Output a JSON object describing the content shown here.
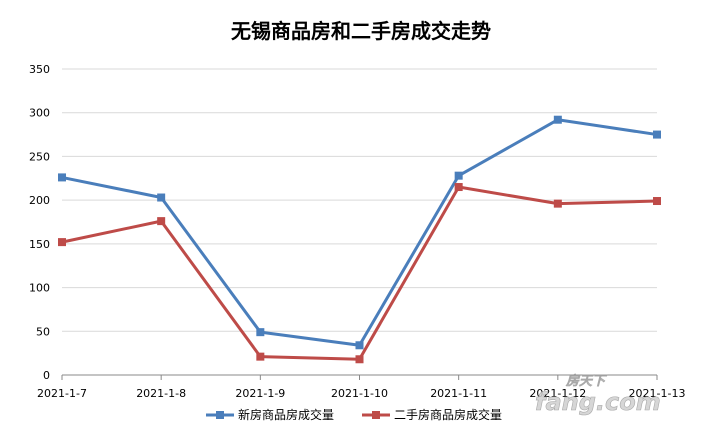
{
  "chart_data": {
    "type": "line",
    "title": "无锡商品房和二手房成交走势",
    "categories": [
      "2021-1-7",
      "2021-1-8",
      "2021-1-9",
      "2021-1-10",
      "2021-1-11",
      "2021-1-12",
      "2021-1-13"
    ],
    "yticks": [
      "0",
      "50",
      "100",
      "150",
      "200",
      "250",
      "300",
      "350"
    ],
    "ylim": [
      0,
      350
    ],
    "grid": true,
    "legend_position": "bottom",
    "series": [
      {
        "name": "新房商品房成交量",
        "values": [
          226,
          203,
          49,
          34,
          228,
          292,
          275
        ],
        "color": "#4a7ebb"
      },
      {
        "name": "二手房商品房成交量",
        "values": [
          152,
          176,
          21,
          18,
          215,
          196,
          199
        ],
        "color": "#be4b48"
      }
    ]
  },
  "watermark": {
    "brand": "fang.com",
    "sub": "房天下"
  }
}
